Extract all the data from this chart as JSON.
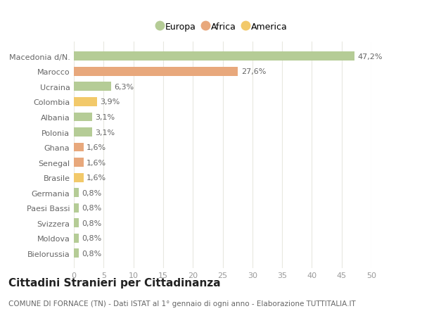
{
  "labels": [
    "Macedonia d/N.",
    "Marocco",
    "Ucraina",
    "Colombia",
    "Albania",
    "Polonia",
    "Ghana",
    "Senegal",
    "Brasile",
    "Germania",
    "Paesi Bassi",
    "Svizzera",
    "Moldova",
    "Bielorussia"
  ],
  "values": [
    47.2,
    27.6,
    6.3,
    3.9,
    3.1,
    3.1,
    1.6,
    1.6,
    1.6,
    0.8,
    0.8,
    0.8,
    0.8,
    0.8
  ],
  "value_labels": [
    "47,2%",
    "27,6%",
    "6,3%",
    "3,9%",
    "3,1%",
    "3,1%",
    "1,6%",
    "1,6%",
    "1,6%",
    "0,8%",
    "0,8%",
    "0,8%",
    "0,8%",
    "0,8%"
  ],
  "continents": [
    "Europa",
    "Africa",
    "Europa",
    "America",
    "Europa",
    "Europa",
    "Africa",
    "Africa",
    "America",
    "Europa",
    "Europa",
    "Europa",
    "Europa",
    "Europa"
  ],
  "colors": {
    "Europa": "#b5cc96",
    "Africa": "#e8a87c",
    "America": "#f2c96a"
  },
  "legend_items": [
    "Europa",
    "Africa",
    "America"
  ],
  "legend_colors": [
    "#b5cc96",
    "#e8a87c",
    "#f2c96a"
  ],
  "xlim": [
    0,
    50
  ],
  "xticks": [
    0,
    5,
    10,
    15,
    20,
    25,
    30,
    35,
    40,
    45,
    50
  ],
  "title": "Cittadini Stranieri per Cittadinanza",
  "subtitle": "COMUNE DI FORNACE (TN) - Dati ISTAT al 1° gennaio di ogni anno - Elaborazione TUTTITALIA.IT",
  "background_color": "#ffffff",
  "grid_color": "#e8e8e0",
  "bar_height": 0.6,
  "title_fontsize": 11,
  "subtitle_fontsize": 7.5,
  "tick_label_fontsize": 8,
  "value_label_fontsize": 8,
  "legend_fontsize": 9
}
